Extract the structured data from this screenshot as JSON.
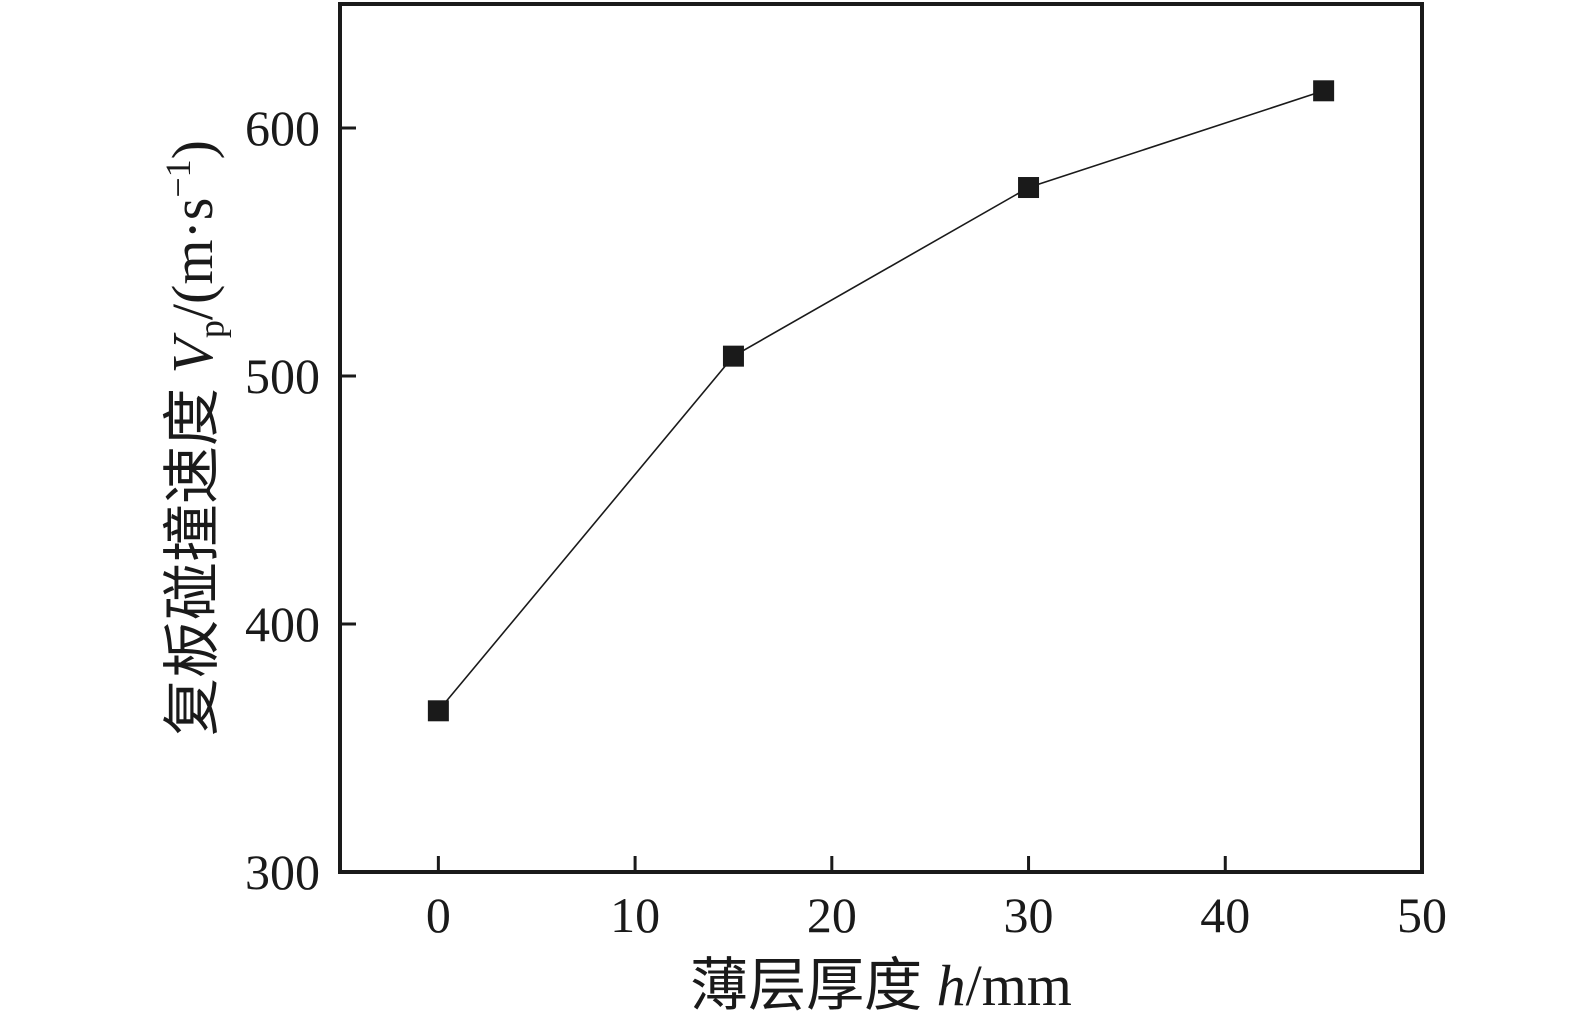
{
  "chart_data": {
    "type": "line",
    "title": "",
    "xlabel_text": "薄层厚度 h/mm",
    "ylabel_text": "复板碰撞速度 Vp/(m·s−1)",
    "xlabel_parts": [
      {
        "t": "薄层厚度 ",
        "style": "normal"
      },
      {
        "t": "h",
        "style": "italic"
      },
      {
        "t": "/mm",
        "style": "normal"
      }
    ],
    "ylabel_parts": [
      {
        "t": "复板碰撞速度 ",
        "style": "normal"
      },
      {
        "t": "V",
        "style": "italic"
      },
      {
        "t": "p",
        "style": "sub"
      },
      {
        "t": "/(m·s",
        "style": "normal"
      },
      {
        "t": "−1",
        "style": "sup"
      },
      {
        "t": ")",
        "style": "normal"
      }
    ],
    "x": [
      0,
      15,
      30,
      45
    ],
    "y": [
      365,
      508,
      576,
      615
    ],
    "x_ticks": [
      0,
      10,
      20,
      30,
      40,
      50
    ],
    "y_ticks": [
      300,
      400,
      500,
      600
    ],
    "xlim": [
      -5,
      50
    ],
    "ylim": [
      300,
      650
    ],
    "grid": false,
    "legend": null,
    "marker": "square",
    "marker_size": 21,
    "colors": {
      "line": "#1a1a1a",
      "marker": "#1a1a1a",
      "axis": "#1a1a1a",
      "background": "#ffffff"
    }
  }
}
